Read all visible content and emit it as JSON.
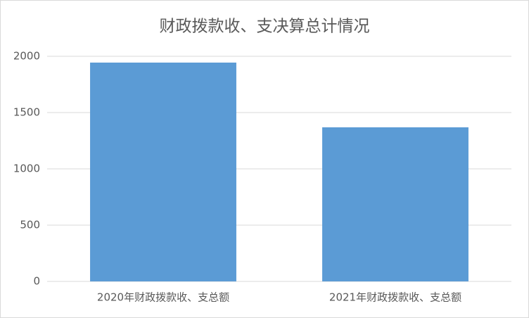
{
  "chart_data": {
    "type": "bar",
    "title": "财政拨款收、支决算总计情况",
    "categories": [
      "2020年财政拨款收、支总额",
      "2021年财政拨款收、支总额"
    ],
    "values": [
      1944,
      1369
    ],
    "color": "#5b9bd5",
    "ylim": [
      0,
      2000
    ],
    "yticks": [
      0,
      500,
      1000,
      1500,
      2000
    ],
    "grid": true
  }
}
